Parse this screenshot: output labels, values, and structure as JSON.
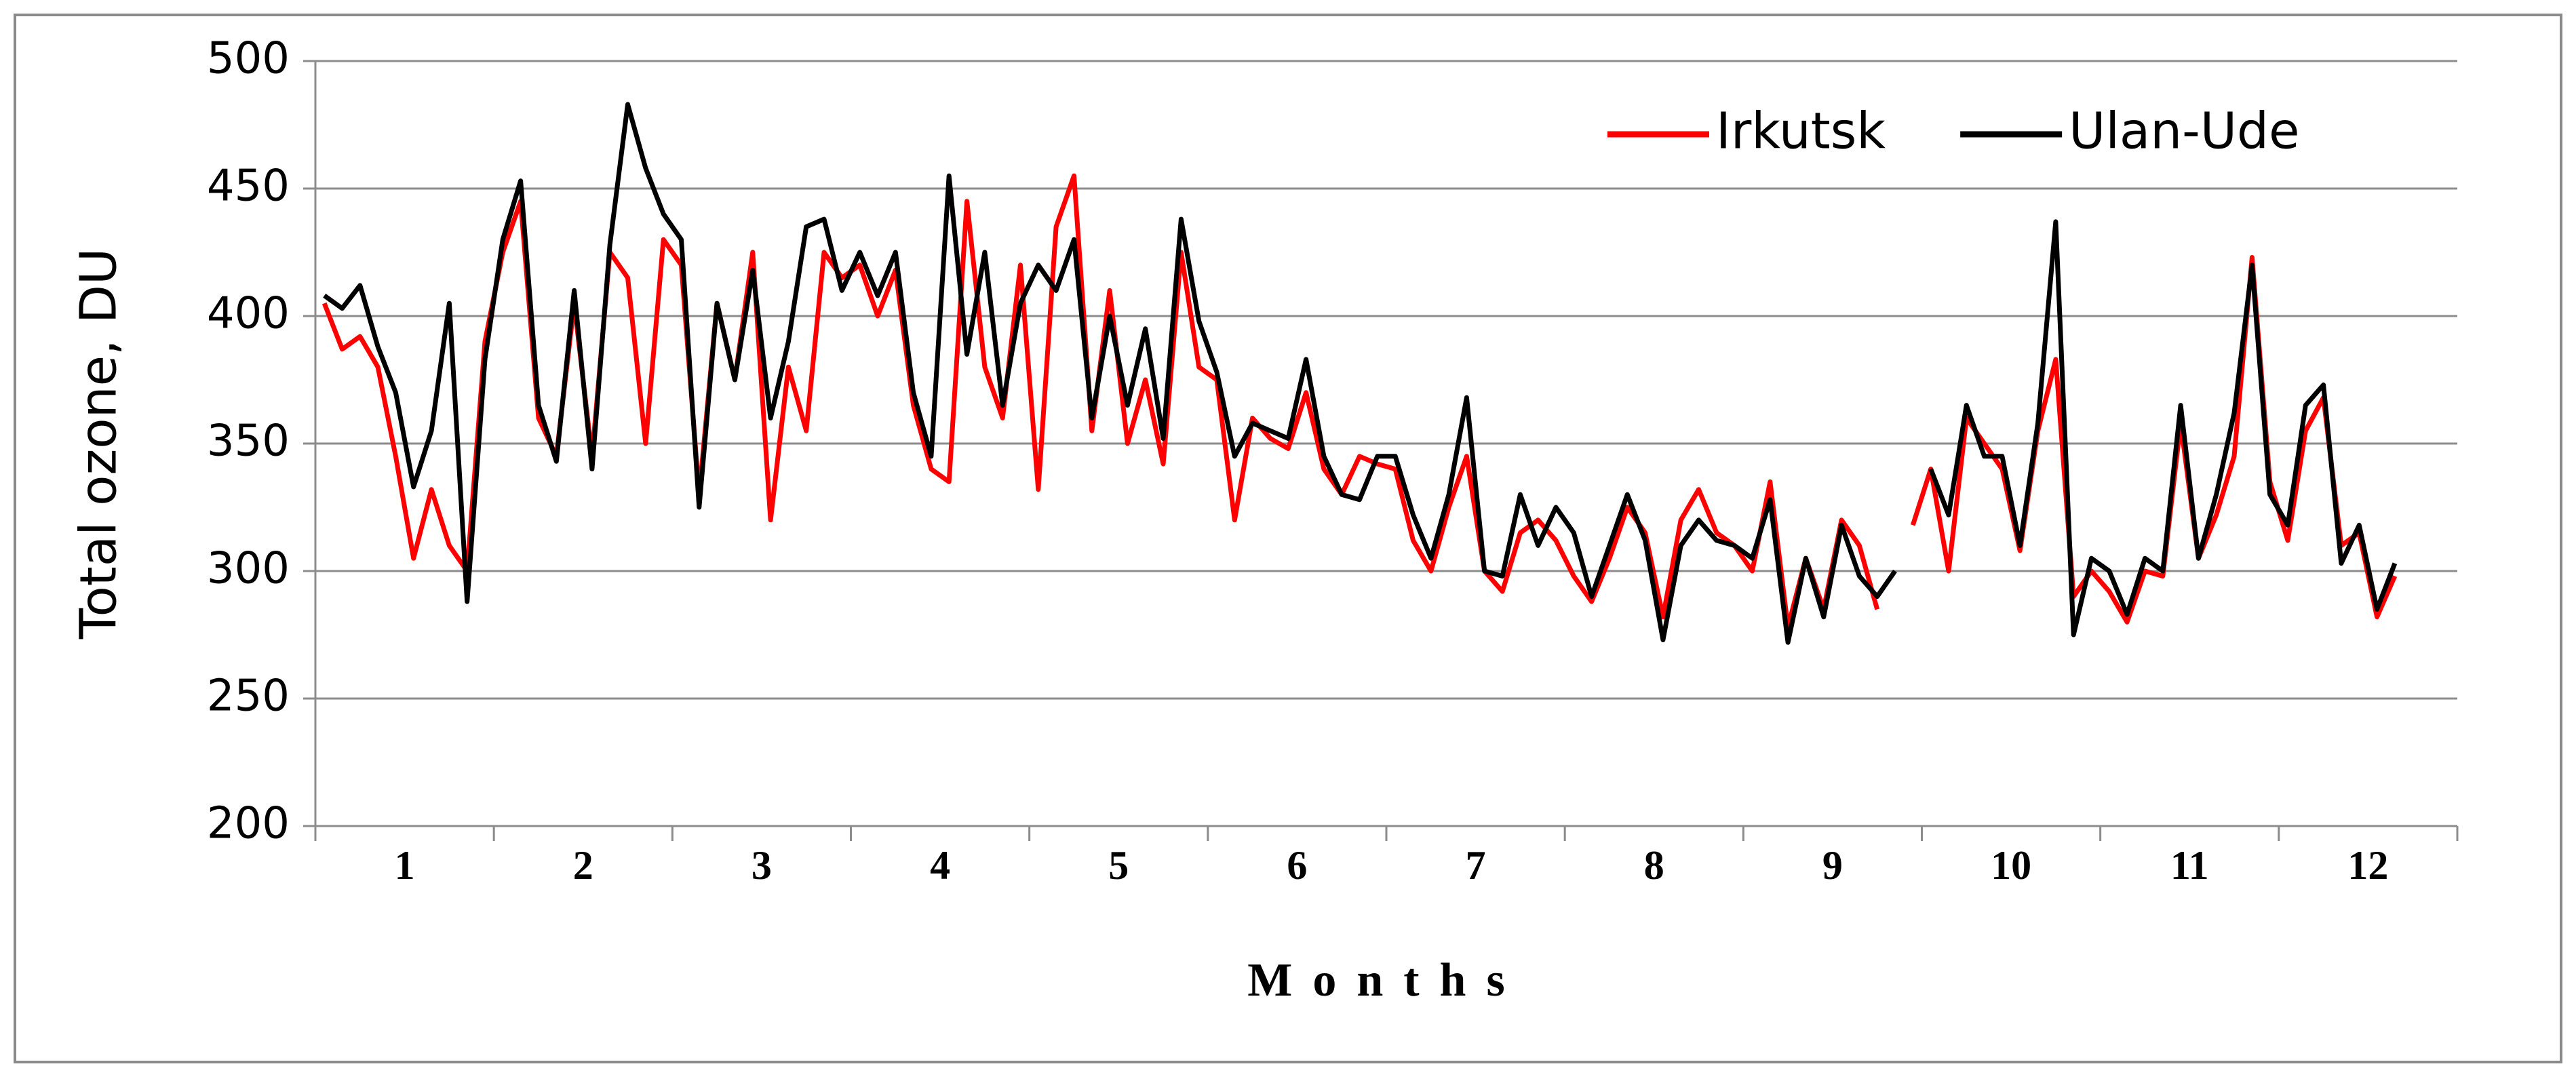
{
  "chart_data": {
    "type": "line",
    "y_label": "Total ozone, DU",
    "x_label": "Months",
    "xlim": [
      0.5,
      12.5
    ],
    "xticks": [
      1,
      2,
      3,
      4,
      5,
      6,
      7,
      8,
      9,
      10,
      11,
      12
    ],
    "ylim": [
      200,
      500
    ],
    "yticks": [
      200,
      250,
      300,
      350,
      400,
      450,
      500
    ],
    "grid": true,
    "legend": "top-right",
    "x": [
      0.55,
      0.65,
      0.75,
      0.85,
      0.95,
      1.05,
      1.15,
      1.25,
      1.35,
      1.45,
      1.55,
      1.65,
      1.75,
      1.85,
      1.95,
      2.05,
      2.15,
      2.25,
      2.35,
      2.45,
      2.55,
      2.65,
      2.75,
      2.85,
      2.95,
      3.05,
      3.15,
      3.25,
      3.35,
      3.45,
      3.55,
      3.65,
      3.75,
      3.85,
      3.95,
      4.05,
      4.15,
      4.25,
      4.35,
      4.45,
      4.55,
      4.65,
      4.75,
      4.85,
      4.95,
      5.05,
      5.15,
      5.25,
      5.35,
      5.45,
      5.55,
      5.65,
      5.75,
      5.85,
      5.95,
      6.05,
      6.15,
      6.25,
      6.35,
      6.45,
      6.55,
      6.65,
      6.75,
      6.85,
      6.95,
      7.05,
      7.15,
      7.25,
      7.35,
      7.45,
      7.55,
      7.65,
      7.75,
      7.85,
      7.95,
      8.05,
      8.15,
      8.25,
      8.35,
      8.45,
      8.55,
      8.65,
      8.75,
      8.85,
      8.95,
      9.05,
      9.15,
      9.25,
      9.35,
      9.45,
      9.55,
      9.65,
      9.75,
      9.85,
      9.95,
      10.05,
      10.15,
      10.25,
      10.35,
      10.45,
      10.55,
      10.65,
      10.75,
      10.85,
      10.95,
      11.05,
      11.15,
      11.25,
      11.35,
      11.45,
      11.55,
      11.65,
      11.75,
      11.85,
      11.95,
      12.05,
      12.15,
      12.25,
      12.35,
      12.45
    ],
    "series": [
      {
        "name": "Irkutsk",
        "color": "#ff0000",
        "values": [
          405,
          387,
          392,
          380,
          345,
          305,
          332,
          310,
          300,
          390,
          425,
          445,
          360,
          345,
          405,
          345,
          425,
          415,
          350,
          430,
          420,
          330,
          405,
          375,
          425,
          320,
          380,
          355,
          425,
          415,
          420,
          400,
          418,
          365,
          340,
          335,
          445,
          380,
          360,
          420,
          332,
          435,
          455,
          355,
          410,
          350,
          375,
          342,
          425,
          380,
          375,
          320,
          360,
          352,
          348,
          370,
          340,
          330,
          345,
          342,
          340,
          312,
          300,
          325,
          345,
          300,
          292,
          315,
          320,
          312,
          298,
          288,
          305,
          325,
          315,
          282,
          320,
          332,
          315,
          310,
          300,
          335,
          278,
          305,
          285,
          320,
          310,
          285,
          null,
          318,
          340,
          300,
          360,
          350,
          340,
          308,
          355,
          383,
          290,
          300,
          292,
          280,
          300,
          298,
          358,
          305,
          322,
          345,
          423,
          335,
          312,
          355,
          368,
          310,
          315,
          282,
          298,
          null,
          null,
          null
        ]
      },
      {
        "name": "Ulan-Ude",
        "color": "#000000",
        "values": [
          408,
          403,
          412,
          388,
          370,
          333,
          355,
          405,
          288,
          383,
          430,
          453,
          365,
          343,
          410,
          340,
          428,
          483,
          458,
          440,
          430,
          325,
          405,
          375,
          418,
          360,
          390,
          435,
          438,
          410,
          425,
          408,
          425,
          370,
          345,
          455,
          385,
          425,
          365,
          405,
          420,
          410,
          430,
          360,
          400,
          365,
          395,
          352,
          438,
          398,
          378,
          345,
          358,
          355,
          352,
          383,
          345,
          330,
          328,
          345,
          345,
          322,
          305,
          330,
          368,
          300,
          298,
          330,
          310,
          325,
          315,
          290,
          310,
          330,
          312,
          273,
          310,
          320,
          312,
          310,
          305,
          328,
          272,
          305,
          282,
          318,
          298,
          290,
          300,
          null,
          340,
          322,
          365,
          345,
          345,
          310,
          358,
          437,
          275,
          305,
          300,
          283,
          305,
          300,
          365,
          305,
          330,
          362,
          420,
          330,
          318,
          365,
          373,
          303,
          318,
          285,
          303,
          null,
          null,
          null
        ]
      }
    ]
  }
}
